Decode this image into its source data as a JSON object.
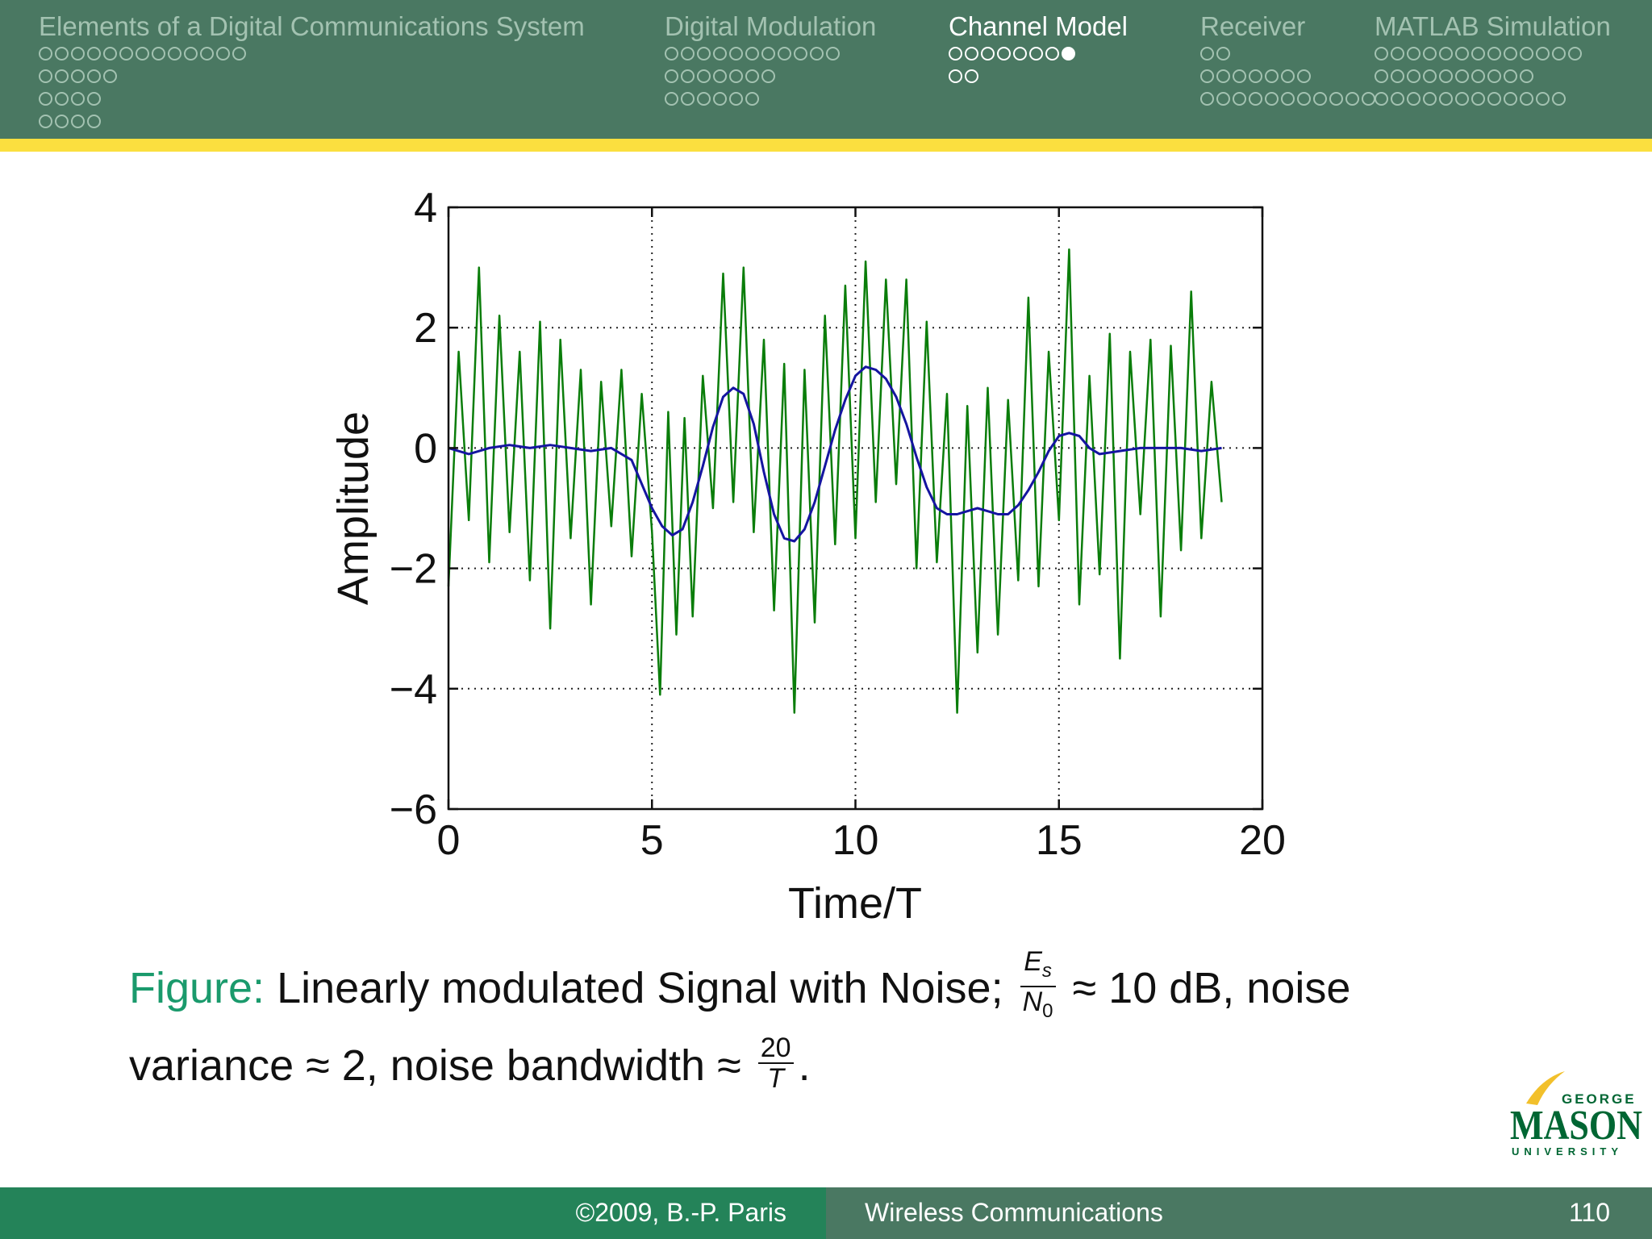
{
  "nav": {
    "sections": [
      {
        "title": "Elements of a Digital Communications System",
        "rows": [
          13,
          5,
          4,
          4
        ],
        "active": false,
        "filled_index": null
      },
      {
        "title": "Digital Modulation",
        "rows": [
          11,
          7,
          6
        ],
        "active": false,
        "filled_index": null
      },
      {
        "title": "Channel Model",
        "rows": [
          8,
          2
        ],
        "active": true,
        "filled_index": [
          0,
          7
        ]
      },
      {
        "title": "Receiver",
        "rows": [
          2,
          7,
          11
        ],
        "active": false,
        "filled_index": null
      },
      {
        "title": "MATLAB Simulation",
        "rows": [
          13,
          10,
          12
        ],
        "active": false,
        "filled_index": null
      }
    ]
  },
  "chart_data": {
    "type": "line",
    "title": "",
    "xlabel": "Time/T",
    "ylabel": "Amplitude",
    "xlim": [
      0,
      20
    ],
    "ylim": [
      -6,
      4
    ],
    "xticks": [
      "0",
      "5",
      "10",
      "15",
      "20"
    ],
    "yticks": [
      "4",
      "2",
      "0",
      "−2",
      "−4",
      "−6"
    ],
    "grid": "dotted",
    "series": [
      {
        "color": "#0a7d0a",
        "style": "noisy",
        "x": [
          0,
          0.25,
          0.5,
          0.75,
          1,
          1.25,
          1.5,
          1.75,
          2,
          2.25,
          2.5,
          2.75,
          3,
          3.25,
          3.5,
          3.75,
          4,
          4.25,
          4.5,
          4.75,
          5,
          5.2,
          5.4,
          5.6,
          5.8,
          6,
          6.25,
          6.5,
          6.75,
          7,
          7.25,
          7.5,
          7.75,
          8,
          8.25,
          8.5,
          8.75,
          9,
          9.25,
          9.5,
          9.75,
          10,
          10.25,
          10.5,
          10.75,
          11,
          11.25,
          11.5,
          11.75,
          12,
          12.25,
          12.5,
          12.75,
          13,
          13.25,
          13.5,
          13.75,
          14,
          14.25,
          14.5,
          14.75,
          15,
          15.25,
          15.5,
          15.75,
          16,
          16.25,
          16.5,
          16.75,
          17,
          17.25,
          17.5,
          17.75,
          18,
          18.25,
          18.5,
          18.75,
          19
        ],
        "y": [
          -2.3,
          1.6,
          -1.2,
          3.0,
          -1.9,
          2.2,
          -1.4,
          1.6,
          -2.2,
          2.1,
          -3.0,
          1.8,
          -1.5,
          1.3,
          -2.6,
          1.1,
          -1.3,
          1.3,
          -1.8,
          0.9,
          -1.4,
          -4.1,
          0.6,
          -3.1,
          0.5,
          -2.8,
          1.2,
          -1.0,
          2.9,
          -0.9,
          3.0,
          -1.4,
          1.8,
          -2.7,
          1.4,
          -4.4,
          1.3,
          -2.9,
          2.2,
          -1.6,
          2.7,
          -1.5,
          3.1,
          -0.9,
          2.8,
          -0.6,
          2.8,
          -2.0,
          2.1,
          -1.9,
          0.9,
          -4.4,
          0.7,
          -3.4,
          1.0,
          -3.1,
          0.8,
          -2.2,
          2.5,
          -2.3,
          1.6,
          -1.2,
          3.3,
          -2.6,
          1.2,
          -2.1,
          1.9,
          -3.5,
          1.6,
          -1.1,
          1.8,
          -2.8,
          1.7,
          -1.7,
          2.6,
          -1.5,
          1.1,
          -0.9
        ]
      },
      {
        "color": "#1515a0",
        "style": "smooth",
        "x": [
          0,
          0.5,
          1,
          1.5,
          2,
          2.5,
          3,
          3.5,
          4,
          4.5,
          5,
          5.25,
          5.5,
          5.75,
          6,
          6.25,
          6.5,
          6.75,
          7,
          7.25,
          7.5,
          7.75,
          8,
          8.25,
          8.5,
          8.75,
          9,
          9.25,
          9.5,
          9.75,
          10,
          10.25,
          10.5,
          10.75,
          11,
          11.25,
          11.5,
          11.75,
          12,
          12.25,
          12.5,
          12.75,
          13,
          13.25,
          13.5,
          13.75,
          14,
          14.25,
          14.5,
          14.75,
          15,
          15.25,
          15.5,
          15.75,
          16,
          16.5,
          17,
          17.5,
          18,
          18.5,
          19
        ],
        "y": [
          0.0,
          -0.1,
          0.0,
          0.05,
          0.0,
          0.05,
          0.0,
          -0.05,
          0.0,
          -0.2,
          -1.0,
          -1.3,
          -1.45,
          -1.35,
          -0.9,
          -0.3,
          0.35,
          0.85,
          1.0,
          0.9,
          0.4,
          -0.4,
          -1.1,
          -1.5,
          -1.55,
          -1.35,
          -0.9,
          -0.3,
          0.3,
          0.8,
          1.2,
          1.35,
          1.3,
          1.15,
          0.85,
          0.4,
          -0.15,
          -0.65,
          -1.0,
          -1.1,
          -1.1,
          -1.05,
          -1.0,
          -1.05,
          -1.1,
          -1.1,
          -0.95,
          -0.7,
          -0.4,
          -0.05,
          0.2,
          0.25,
          0.2,
          0.0,
          -0.1,
          -0.05,
          0.0,
          0.0,
          0.0,
          -0.05,
          0.0
        ]
      }
    ]
  },
  "caption": {
    "label": "Figure:",
    "text1": "Linearly modulated Signal with Noise;",
    "frac1_num": "E",
    "frac1_num_sub": "s",
    "frac1_den": "N",
    "frac1_den_sub": "0",
    "text2": "≈ 10 dB, noise variance ≈ 2, noise bandwidth ≈",
    "frac2_num": "20",
    "frac2_den": "T",
    "text3": "."
  },
  "logo": {
    "george": "GEORGE",
    "mason": "MASON",
    "university": "UNIVERSITY",
    "colors": {
      "green": "#006633",
      "gold": "#f2c02b"
    }
  },
  "footer": {
    "left": "©2009, B.-P. Paris",
    "center": "Wireless Communications",
    "page": "110"
  },
  "colors": {
    "header": "#4a7862",
    "stripe": "#fbdf3f",
    "footer_left": "#248359",
    "accent_caption": "#1a9a6c"
  }
}
